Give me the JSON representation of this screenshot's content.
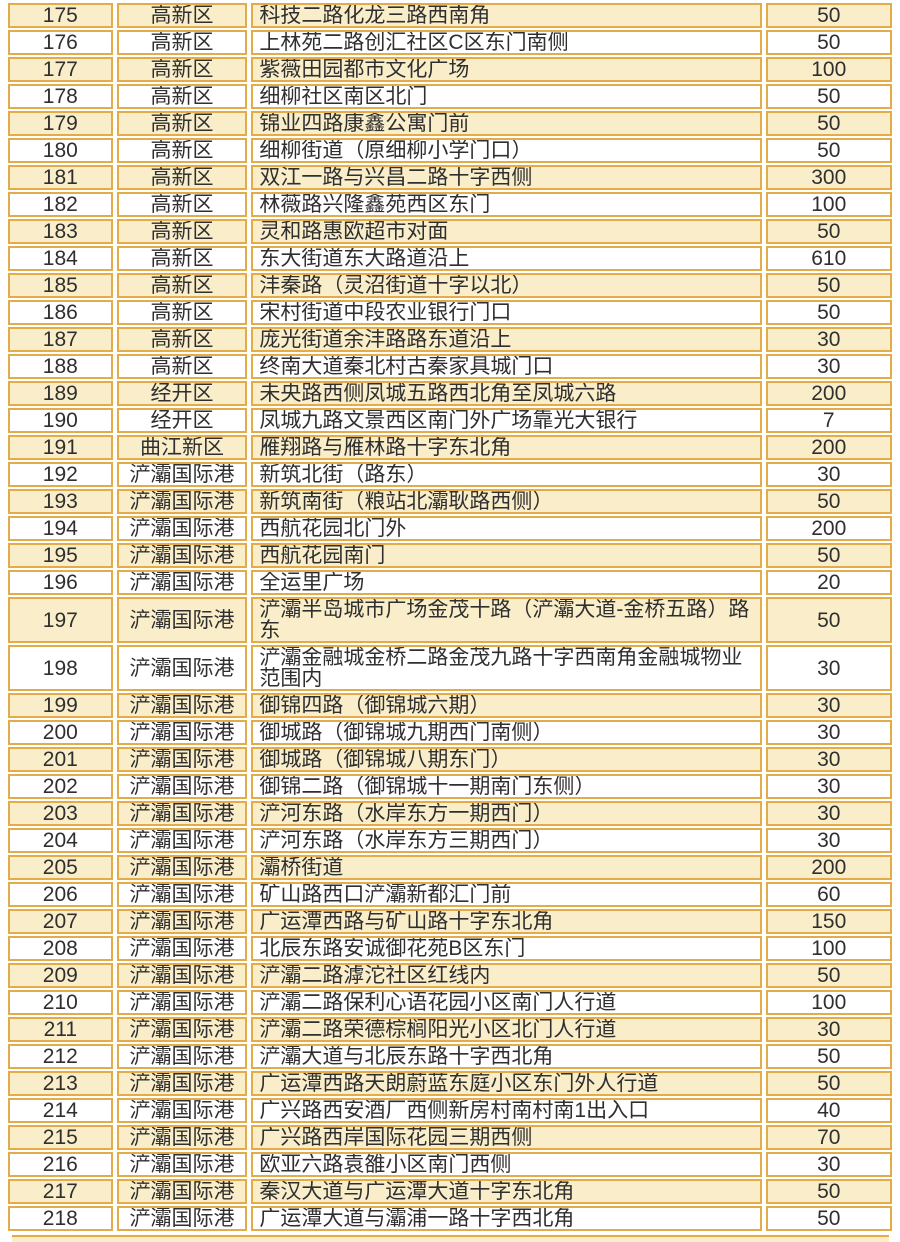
{
  "colors": {
    "row_alt_bg": "#faeeca",
    "row_bg": "#ffffff",
    "border": "#e3ac49",
    "text": "#2f2f2f",
    "page_bg": "#ffffff"
  },
  "table": {
    "rows": [
      {
        "no": "175",
        "district": "高新区",
        "location": "科技二路化龙三路西南角",
        "count": "50"
      },
      {
        "no": "176",
        "district": "高新区",
        "location": "上林苑二路创汇社区C区东门南侧",
        "count": "50"
      },
      {
        "no": "177",
        "district": "高新区",
        "location": "紫薇田园都市文化广场",
        "count": "100"
      },
      {
        "no": "178",
        "district": "高新区",
        "location": "细柳社区南区北门",
        "count": "50"
      },
      {
        "no": "179",
        "district": "高新区",
        "location": "锦业四路康鑫公寓门前",
        "count": "50"
      },
      {
        "no": "180",
        "district": "高新区",
        "location": "细柳街道（原细柳小学门口）",
        "count": "50"
      },
      {
        "no": "181",
        "district": "高新区",
        "location": "双江一路与兴昌二路十字西侧",
        "count": "300"
      },
      {
        "no": "182",
        "district": "高新区",
        "location": "林薇路兴隆鑫苑西区东门",
        "count": "100"
      },
      {
        "no": "183",
        "district": "高新区",
        "location": "灵和路惠欧超市对面",
        "count": "50"
      },
      {
        "no": "184",
        "district": "高新区",
        "location": "东大街道东大路道沿上",
        "count": "610"
      },
      {
        "no": "185",
        "district": "高新区",
        "location": "沣秦路（灵沼街道十字以北）",
        "count": "50"
      },
      {
        "no": "186",
        "district": "高新区",
        "location": "宋村街道中段农业银行门口",
        "count": "50"
      },
      {
        "no": "187",
        "district": "高新区",
        "location": "庞光街道余沣路路东道沿上",
        "count": "30"
      },
      {
        "no": "188",
        "district": "高新区",
        "location": "终南大道秦北村古秦家具城门口",
        "count": "30"
      },
      {
        "no": "189",
        "district": "经开区",
        "location": "未央路西侧凤城五路西北角至凤城六路",
        "count": "200"
      },
      {
        "no": "190",
        "district": "经开区",
        "location": "凤城九路文景西区南门外广场靠光大银行",
        "count": "7"
      },
      {
        "no": "191",
        "district": "曲江新区",
        "location": "雁翔路与雁林路十字东北角",
        "count": "200"
      },
      {
        "no": "192",
        "district": "浐灞国际港",
        "location": "新筑北街（路东）",
        "count": "30"
      },
      {
        "no": "193",
        "district": "浐灞国际港",
        "location": "新筑南街（粮站北灞耿路西侧）",
        "count": "50"
      },
      {
        "no": "194",
        "district": "浐灞国际港",
        "location": "西航花园北门外",
        "count": "200"
      },
      {
        "no": "195",
        "district": "浐灞国际港",
        "location": "西航花园南门",
        "count": "50"
      },
      {
        "no": "196",
        "district": "浐灞国际港",
        "location": "全运里广场",
        "count": "20"
      },
      {
        "no": "197",
        "district": "浐灞国际港",
        "location": "浐灞半岛城市广场金茂十路（浐灞大道-金桥五路）路东",
        "count": "50"
      },
      {
        "no": "198",
        "district": "浐灞国际港",
        "location": "浐灞金融城金桥二路金茂九路十字西南角金融城物业范围内",
        "count": "30"
      },
      {
        "no": "199",
        "district": "浐灞国际港",
        "location": "御锦四路（御锦城六期）",
        "count": "30"
      },
      {
        "no": "200",
        "district": "浐灞国际港",
        "location": "御城路（御锦城九期西门南侧）",
        "count": "30"
      },
      {
        "no": "201",
        "district": "浐灞国际港",
        "location": "御城路（御锦城八期东门）",
        "count": "30"
      },
      {
        "no": "202",
        "district": "浐灞国际港",
        "location": "御锦二路（御锦城十一期南门东侧）",
        "count": "30"
      },
      {
        "no": "203",
        "district": "浐灞国际港",
        "location": "浐河东路（水岸东方一期西门）",
        "count": "30"
      },
      {
        "no": "204",
        "district": "浐灞国际港",
        "location": "浐河东路（水岸东方三期西门）",
        "count": "30"
      },
      {
        "no": "205",
        "district": "浐灞国际港",
        "location": "灞桥街道",
        "count": "200"
      },
      {
        "no": "206",
        "district": "浐灞国际港",
        "location": "矿山路西口浐灞新都汇门前",
        "count": "60"
      },
      {
        "no": "207",
        "district": "浐灞国际港",
        "location": "广运潭西路与矿山路十字东北角",
        "count": "150"
      },
      {
        "no": "208",
        "district": "浐灞国际港",
        "location": "北辰东路安诚御花苑B区东门",
        "count": "100"
      },
      {
        "no": "209",
        "district": "浐灞国际港",
        "location": "浐灞二路滹沱社区红线内",
        "count": "50"
      },
      {
        "no": "210",
        "district": "浐灞国际港",
        "location": "浐灞二路保利心语花园小区南门人行道",
        "count": "100"
      },
      {
        "no": "211",
        "district": "浐灞国际港",
        "location": "浐灞二路荣德棕榈阳光小区北门人行道",
        "count": "30"
      },
      {
        "no": "212",
        "district": "浐灞国际港",
        "location": "浐灞大道与北辰东路十字西北角",
        "count": "50"
      },
      {
        "no": "213",
        "district": "浐灞国际港",
        "location": "广运潭西路天朗蔚蓝东庭小区东门外人行道",
        "count": "50"
      },
      {
        "no": "214",
        "district": "浐灞国际港",
        "location": "广兴路西安酒厂西侧新房村南村南1出入口",
        "count": "40"
      },
      {
        "no": "215",
        "district": "浐灞国际港",
        "location": "广兴路西岸国际花园三期西侧",
        "count": "70"
      },
      {
        "no": "216",
        "district": "浐灞国际港",
        "location": "欧亚六路袁雒小区南门西侧",
        "count": "30"
      },
      {
        "no": "217",
        "district": "浐灞国际港",
        "location": "秦汉大道与广运潭大道十字东北角",
        "count": "50"
      },
      {
        "no": "218",
        "district": "浐灞国际港",
        "location": "广运潭大道与灞浦一路十字西北角",
        "count": "50"
      }
    ]
  }
}
